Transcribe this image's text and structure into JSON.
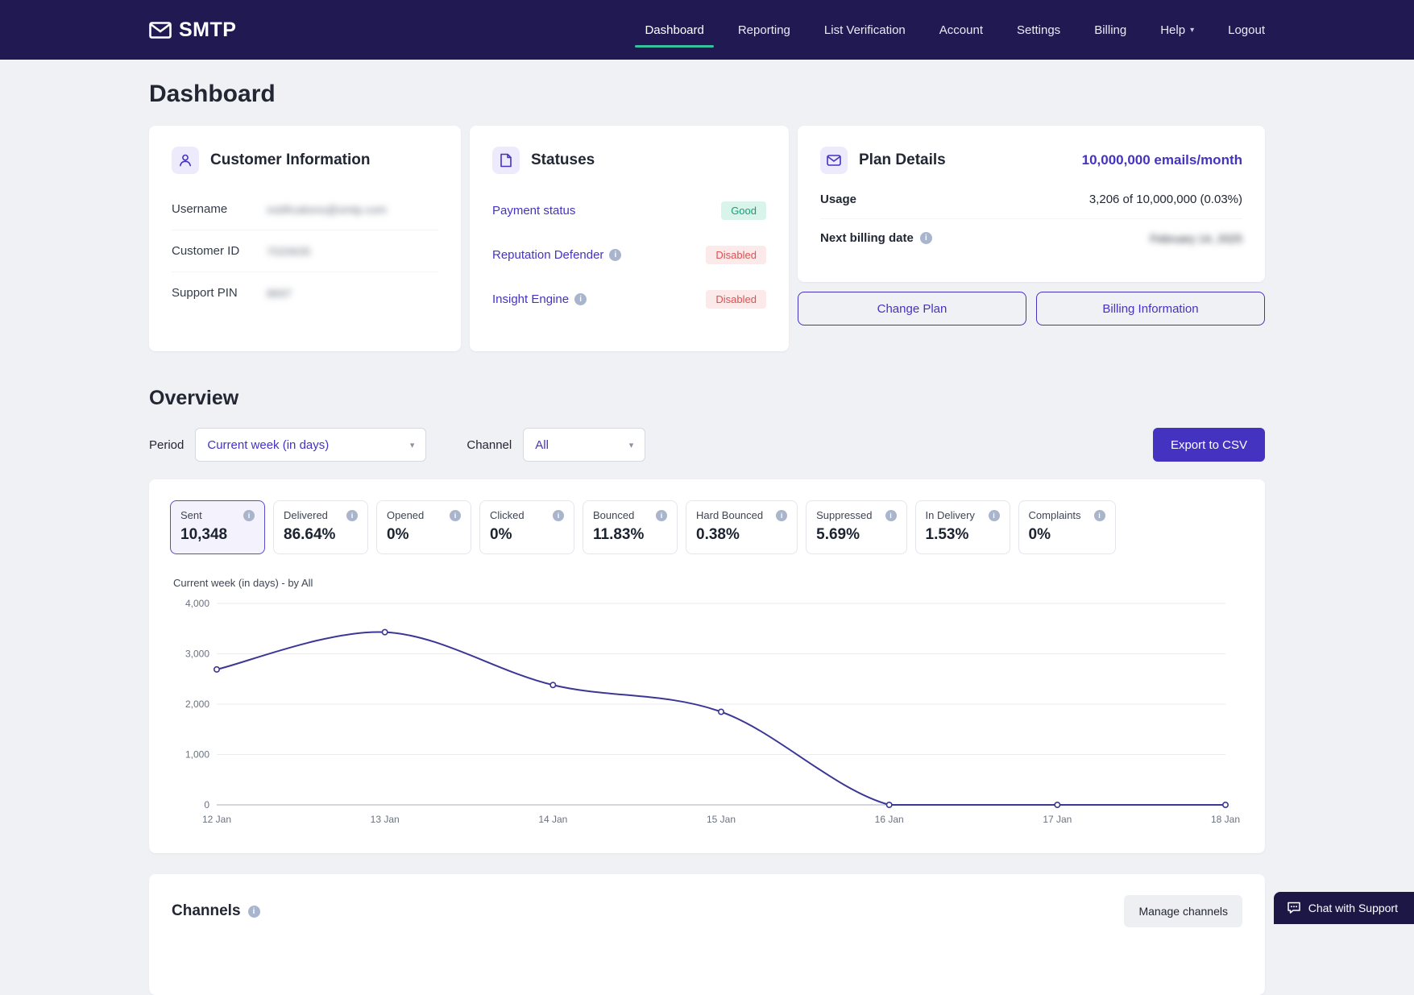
{
  "nav": {
    "brand": "SMTP",
    "items": [
      {
        "label": "Dashboard",
        "active": true
      },
      {
        "label": "Reporting"
      },
      {
        "label": "List Verification"
      },
      {
        "label": "Account"
      },
      {
        "label": "Settings"
      },
      {
        "label": "Billing"
      },
      {
        "label": "Help",
        "dropdown": true
      },
      {
        "label": "Logout"
      }
    ]
  },
  "page_title": "Dashboard",
  "customer_info": {
    "title": "Customer Information",
    "rows": [
      {
        "label": "Username",
        "value": "notifications@smtp.com",
        "redacted": true
      },
      {
        "label": "Customer ID",
        "value": "7020635",
        "redacted": true
      },
      {
        "label": "Support PIN",
        "value": "8697",
        "redacted": true
      }
    ]
  },
  "statuses": {
    "title": "Statuses",
    "rows": [
      {
        "label": "Payment status",
        "badge": "Good",
        "badge_type": "good",
        "info": false
      },
      {
        "label": "Reputation Defender",
        "badge": "Disabled",
        "badge_type": "disabled",
        "info": true
      },
      {
        "label": "Insight Engine",
        "badge": "Disabled",
        "badge_type": "disabled",
        "info": true
      }
    ]
  },
  "plan": {
    "title": "Plan Details",
    "quota": "10,000,000 emails/month",
    "usage_label": "Usage",
    "usage_value": "3,206 of 10,000,000 (0.03%)",
    "billing_label": "Next billing date",
    "billing_value": "February 14, 2025",
    "billing_redacted": true,
    "buttons": {
      "change_plan": "Change Plan",
      "billing_info": "Billing Information"
    }
  },
  "overview": {
    "title": "Overview",
    "period_label": "Period",
    "period_value": "Current week (in days)",
    "channel_label": "Channel",
    "channel_value": "All",
    "export_label": "Export to CSV"
  },
  "stats": [
    {
      "label": "Sent",
      "value": "10,348",
      "selected": true
    },
    {
      "label": "Delivered",
      "value": "86.64%"
    },
    {
      "label": "Opened",
      "value": "0%"
    },
    {
      "label": "Clicked",
      "value": "0%"
    },
    {
      "label": "Bounced",
      "value": "11.83%"
    },
    {
      "label": "Hard Bounced",
      "value": "0.38%"
    },
    {
      "label": "Suppressed",
      "value": "5.69%"
    },
    {
      "label": "In Delivery",
      "value": "1.53%"
    },
    {
      "label": "Complaints",
      "value": "0%"
    }
  ],
  "chart_data": {
    "type": "line",
    "title": "Current week (in days) - by All",
    "x": [
      "12 Jan",
      "13 Jan",
      "14 Jan",
      "15 Jan",
      "16 Jan",
      "17 Jan",
      "18 Jan"
    ],
    "values": [
      2690,
      3430,
      2380,
      1848,
      0,
      0,
      0
    ],
    "series_name": "Sent",
    "ylim": [
      0,
      4000
    ],
    "yticks": [
      0,
      1000,
      2000,
      3000,
      4000
    ],
    "grid": true,
    "legend": "none",
    "line_color": "#3b3795"
  },
  "channels": {
    "title": "Channels",
    "manage_label": "Manage channels"
  },
  "chat": {
    "label": "Chat with Support"
  },
  "colors": {
    "nav_bg": "#211a52",
    "accent": "#4433c0",
    "active_underline": "#35c39f",
    "badge_good_bg": "#d9f4ea",
    "badge_good_text": "#169d78",
    "badge_disabled_bg": "#fce9e9",
    "badge_disabled_text": "#dd5151",
    "chart_line": "#3b3795",
    "page_bg": "#f0f1f5"
  }
}
